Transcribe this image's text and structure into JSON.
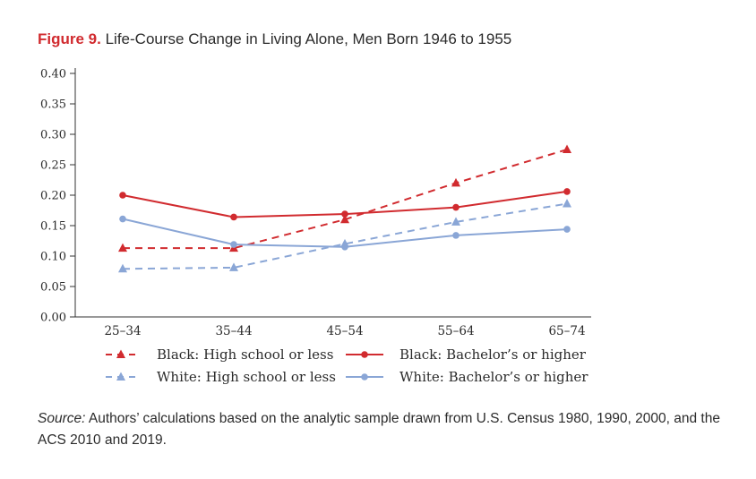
{
  "title": {
    "figure_label": "Figure 9.",
    "text": "Life-Course Change in Living Alone, Men Born 1946 to 1955"
  },
  "colors": {
    "red": "#d12b2f",
    "blue": "#8aa6d6"
  },
  "chart_data": {
    "type": "line",
    "categories": [
      "25–34",
      "35–44",
      "45–54",
      "55–64",
      "65–74"
    ],
    "yticks": [
      "0.00",
      "0.05",
      "0.10",
      "0.15",
      "0.20",
      "0.25",
      "0.30",
      "0.35",
      "0.40"
    ],
    "ylim": [
      0,
      0.4
    ],
    "grid": false,
    "legend_position": "bottom",
    "series": [
      {
        "name": "Black: High school or less",
        "color": "#d12b2f",
        "dash": true,
        "marker": "triangle",
        "values": [
          0.113,
          0.113,
          0.16,
          0.22,
          0.275
        ]
      },
      {
        "name": "Black: Bachelor’s or higher",
        "color": "#d12b2f",
        "dash": false,
        "marker": "circle",
        "values": [
          0.2,
          0.164,
          0.169,
          0.18,
          0.206
        ]
      },
      {
        "name": "White: High school or less",
        "color": "#8aa6d6",
        "dash": true,
        "marker": "triangle",
        "values": [
          0.079,
          0.081,
          0.12,
          0.156,
          0.186
        ]
      },
      {
        "name": "White: Bachelor’s or higher",
        "color": "#8aa6d6",
        "dash": false,
        "marker": "circle",
        "values": [
          0.161,
          0.119,
          0.115,
          0.134,
          0.144
        ]
      }
    ]
  },
  "source": {
    "label": "Source:",
    "text": " Authors’ calculations based on the analytic sample drawn from U.S. Census 1980, 1990, 2000, and the ACS 2010 and 2019."
  }
}
